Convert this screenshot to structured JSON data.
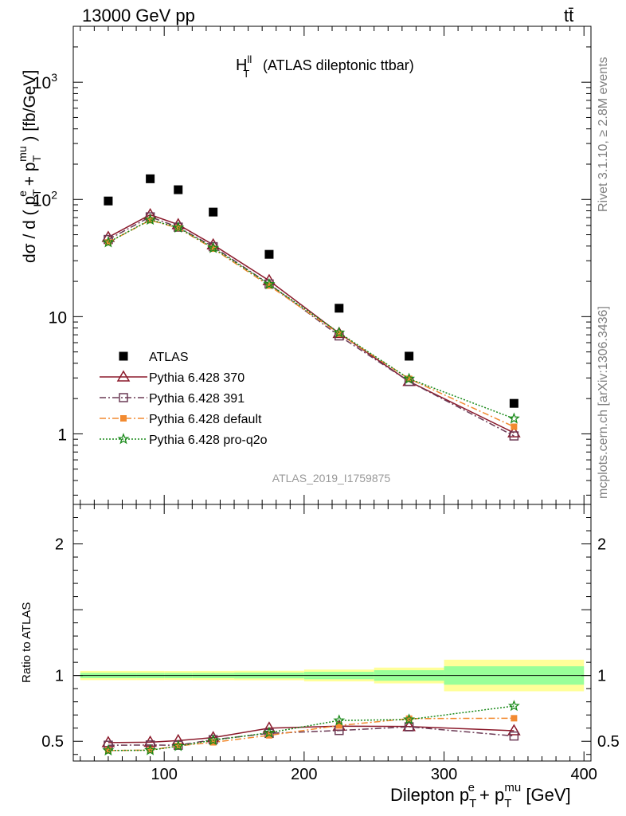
{
  "header": {
    "energy_label": "13000 GeV pp",
    "process_label": "tt̄"
  },
  "side_text": {
    "rivet": "Rivet 3.1.10, ≥ 2.8M events",
    "mcplots": "mcplots.cern.ch [arXiv:1306.3436]"
  },
  "watermark": "ATLAS_2019_I1759875",
  "chart_data": [
    {
      "type": "scatter",
      "panel": "main",
      "title_main": "H",
      "title_sup": "ll",
      "title_sub": "T",
      "title_rest": "(ATLAS dileptonic ttbar)",
      "ylabel": "dσ / d ( p_T^e + p_T^mu ) [fb/GeV]",
      "yscale": "log",
      "ylim": [
        0.25,
        3000
      ],
      "xlim": [
        35,
        405
      ],
      "yticks": [
        {
          "value": 1,
          "label": "1"
        },
        {
          "value": 10,
          "label": "10"
        },
        {
          "value": 100,
          "label": "10",
          "sup": "2"
        },
        {
          "value": 1000,
          "label": "10",
          "sup": "3"
        }
      ],
      "legend_position": "lower-left",
      "series": [
        {
          "name": "ATLAS",
          "style": "data",
          "color": "#000000",
          "x": [
            60,
            90,
            110,
            135,
            175,
            225,
            275,
            350
          ],
          "y": [
            97,
            150,
            121,
            78,
            34,
            11.8,
            4.6,
            1.82
          ]
        },
        {
          "name": "Pythia 6.428 370",
          "style": "triangle-solid",
          "color": "#8b1a2b",
          "x": [
            60,
            90,
            110,
            135,
            175,
            225,
            275,
            350
          ],
          "y": [
            47.5,
            74,
            61,
            41,
            20.3,
            7.2,
            2.8,
            1.02
          ]
        },
        {
          "name": "Pythia 6.428 391",
          "style": "square-dashdot",
          "color": "#6b3a55",
          "x": [
            60,
            90,
            110,
            135,
            175,
            225,
            275,
            350
          ],
          "y": [
            45.5,
            71,
            58,
            39.5,
            19,
            6.85,
            2.8,
            0.96
          ]
        },
        {
          "name": "Pythia 6.428 default",
          "style": "filledsquare-dashdot",
          "color": "#f28a30",
          "x": [
            60,
            90,
            110,
            135,
            175,
            225,
            275,
            350
          ],
          "y": [
            43,
            66.5,
            57,
            38,
            18.4,
            7.15,
            2.95,
            1.15
          ]
        },
        {
          "name": "Pythia 6.428 pro-q2o",
          "style": "star-dotted",
          "color": "#1a8a1a",
          "x": [
            60,
            90,
            110,
            135,
            175,
            225,
            275,
            350
          ],
          "y": [
            43,
            67,
            57.5,
            38.5,
            18.9,
            7.3,
            2.95,
            1.35
          ]
        }
      ]
    },
    {
      "type": "line",
      "panel": "ratio",
      "ylabel": "Ratio to ATLAS",
      "xlabel": "Dilepton p_T^e + p_T^mu [GeV]",
      "xlim": [
        35,
        405
      ],
      "ylim": [
        0.35,
        2.3
      ],
      "xticks": [
        100,
        200,
        300,
        400
      ],
      "yticks": [
        0.5,
        1,
        2
      ],
      "bands": {
        "edges": [
          40,
          80,
          100,
          120,
          150,
          200,
          250,
          300,
          400
        ],
        "stat_sys_yellow": [
          0.035,
          0.035,
          0.034,
          0.035,
          0.036,
          0.045,
          0.06,
          0.12
        ],
        "stat_green": [
          0.02,
          0.02,
          0.02,
          0.02,
          0.022,
          0.028,
          0.04,
          0.07
        ]
      },
      "series": [
        {
          "name": "Pythia 6.428 370",
          "x": [
            60,
            90,
            110,
            135,
            175,
            225,
            275,
            350
          ],
          "y": [
            0.49,
            0.493,
            0.505,
            0.528,
            0.6,
            0.615,
            0.612,
            0.58
          ]
        },
        {
          "name": "Pythia 6.428 391",
          "x": [
            60,
            90,
            110,
            135,
            175,
            225,
            275,
            350
          ],
          "y": [
            0.47,
            0.472,
            0.47,
            0.512,
            0.56,
            0.582,
            0.61,
            0.54
          ]
        },
        {
          "name": "Pythia 6.428 default",
          "x": [
            60,
            90,
            110,
            135,
            175,
            225,
            275,
            350
          ],
          "y": [
            0.43,
            0.433,
            0.465,
            0.492,
            0.545,
            0.62,
            0.672,
            0.675
          ]
        },
        {
          "name": "Pythia 6.428 pro-q2o",
          "x": [
            60,
            90,
            110,
            135,
            175,
            225,
            275,
            350
          ],
          "y": [
            0.43,
            0.432,
            0.463,
            0.508,
            0.565,
            0.658,
            0.665,
            0.768
          ]
        }
      ]
    }
  ]
}
